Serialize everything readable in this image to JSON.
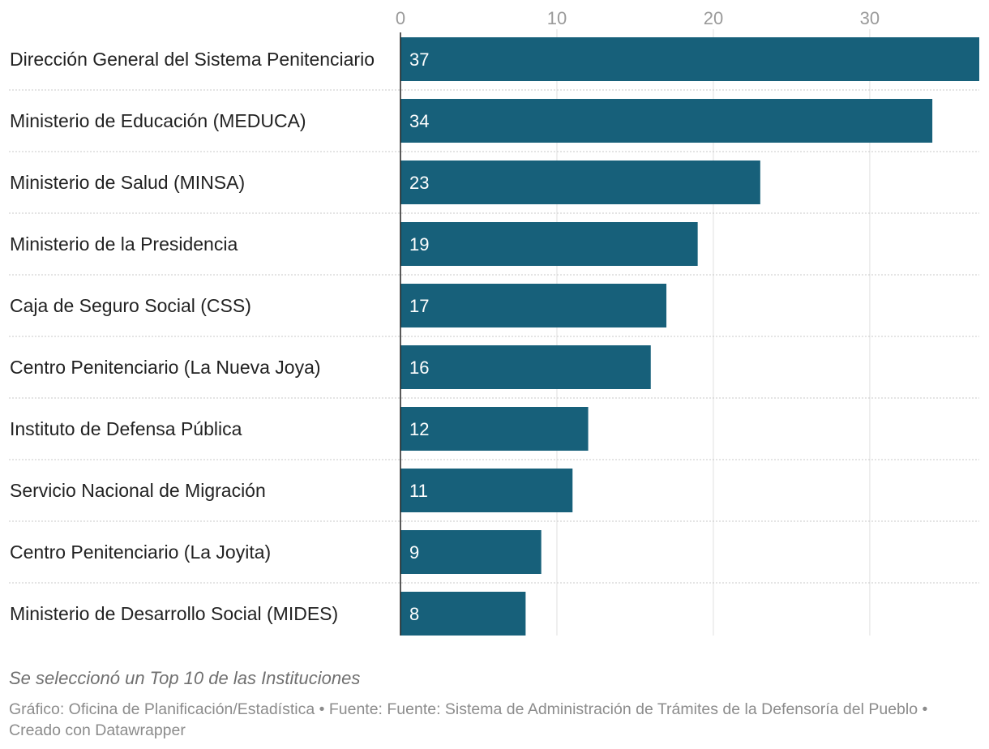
{
  "chart_data": {
    "type": "bar",
    "orientation": "horizontal",
    "categories": [
      "Dirección General del Sistema Penitenciario",
      "Ministerio de Educación (MEDUCA)",
      "Ministerio de Salud (MINSA)",
      "Ministerio de la Presidencia",
      "Caja de Seguro Social (CSS)",
      "Centro Penitenciario (La Nueva Joya)",
      "Instituto de Defensa Pública",
      "Servicio Nacional de Migración",
      "Centro Penitenciario (La Joyita)",
      "Ministerio de Desarrollo Social (MIDES)"
    ],
    "values": [
      37,
      34,
      23,
      19,
      17,
      16,
      12,
      11,
      9,
      8
    ],
    "x_ticks": [
      "0",
      "10",
      "20",
      "30"
    ],
    "xlim": [
      0,
      37
    ],
    "bar_color": "#17607a",
    "grid": true,
    "title": "",
    "xlabel": "",
    "ylabel": ""
  },
  "notes": "Se seleccionó un Top 10 de las Instituciones",
  "footer": "Gráfico: Oficina de Planificación/Estadística • Fuente: Fuente: Sistema de Administración de Trámites de la Defensoría del Pueblo • Creado con Datawrapper"
}
